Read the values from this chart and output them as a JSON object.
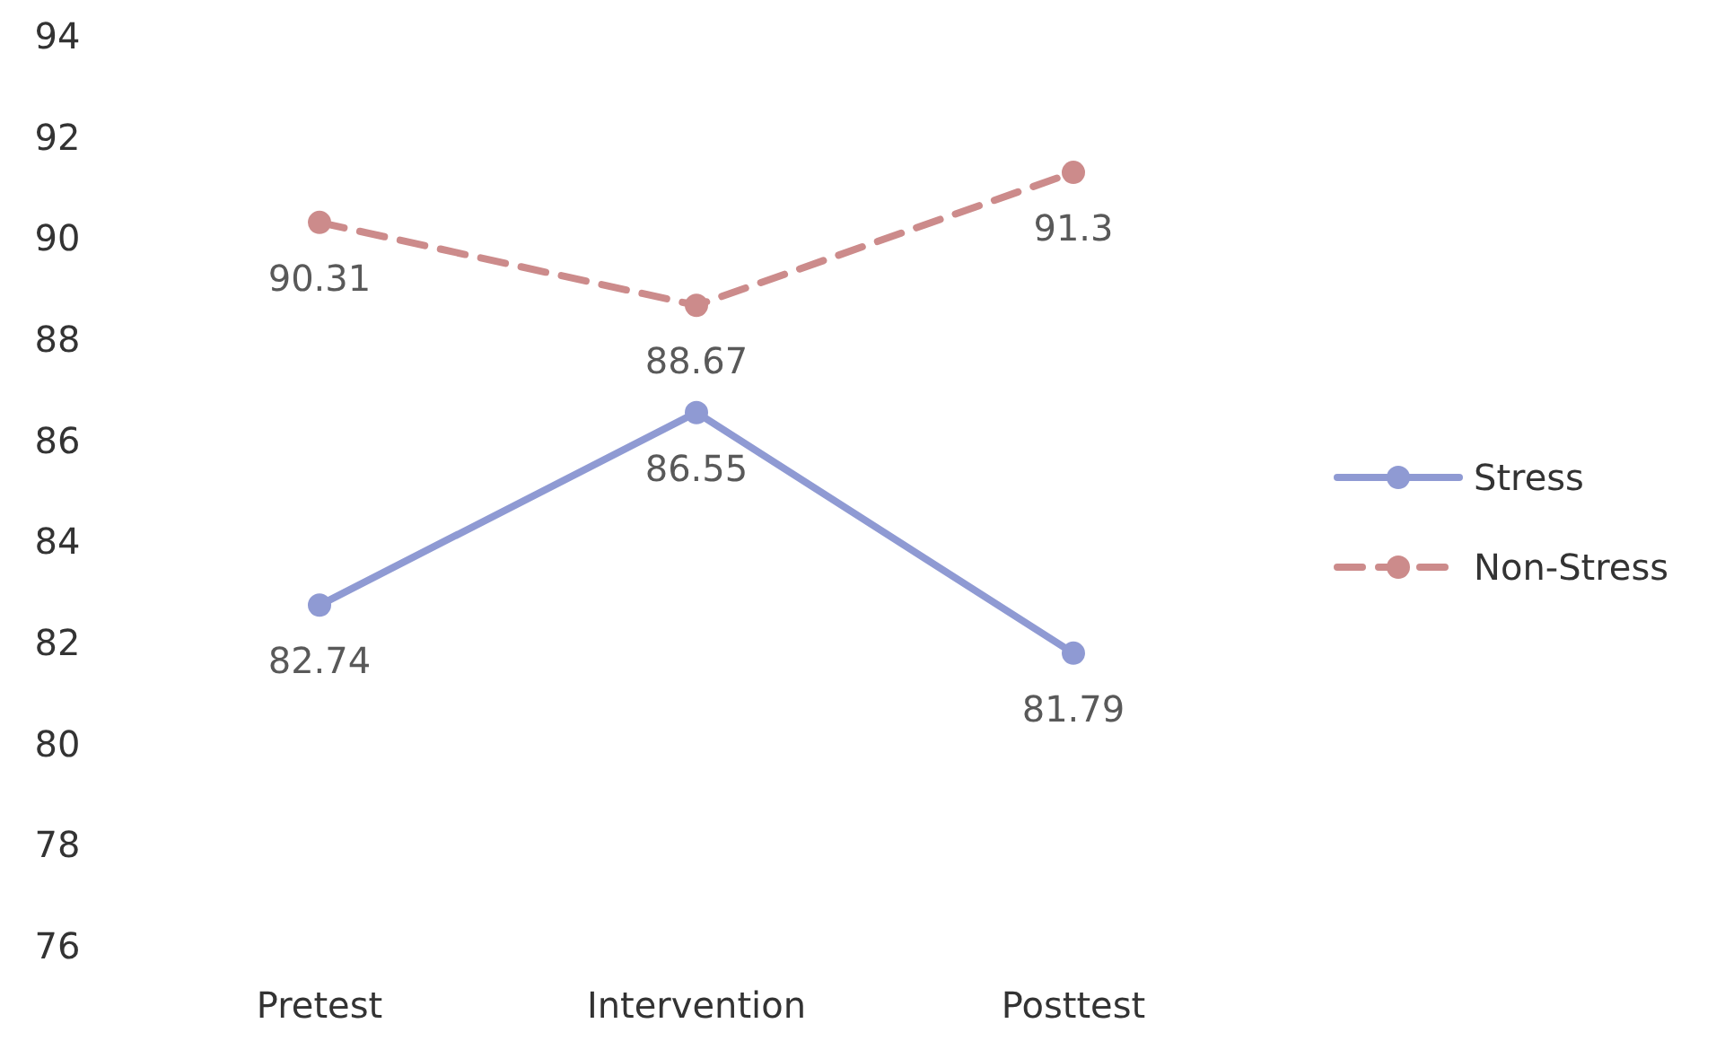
{
  "chart_data": {
    "type": "line",
    "categories": [
      "Pretest",
      "Intervention",
      "Posttest"
    ],
    "series": [
      {
        "name": "Stress",
        "color": "#8f9ad3",
        "values": [
          82.74,
          86.55,
          81.79
        ],
        "line_style": "solid"
      },
      {
        "name": "Non-Stress",
        "color": "#cc8b8b",
        "values": [
          90.31,
          88.67,
          91.3
        ],
        "line_style": "dashed"
      }
    ],
    "ylim": [
      76,
      94
    ],
    "yticks": [
      76,
      78,
      80,
      82,
      84,
      86,
      88,
      90,
      92,
      94
    ],
    "grid": false,
    "legend": "right",
    "marker": "circle",
    "data_labels": true
  }
}
